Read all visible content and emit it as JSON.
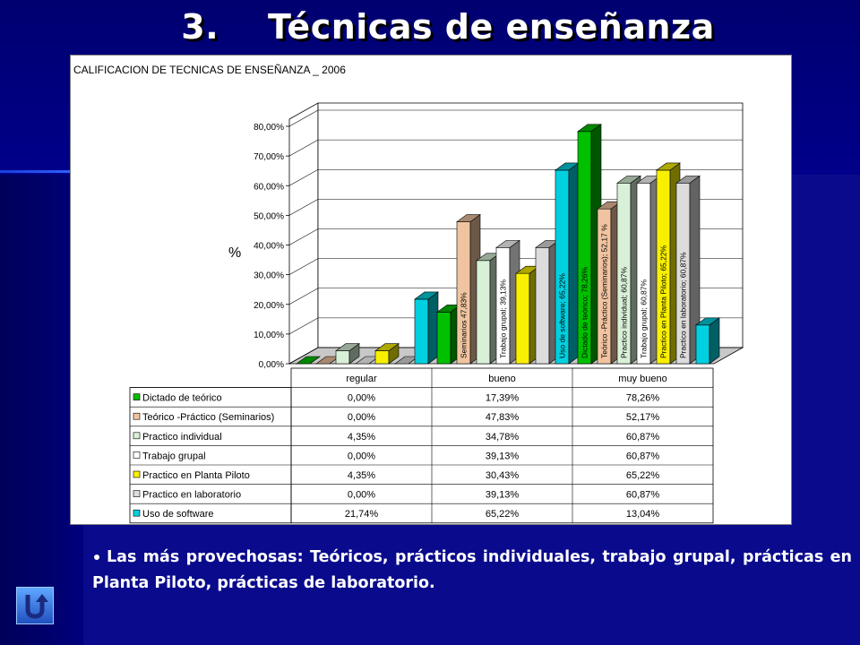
{
  "slide": {
    "title": "3.    Técnicas de enseñanza",
    "bullet_text": "Las más provechosas: Teóricos, prácticos individuales, trabajo grupal, prácticas en Planta Piloto, prácticas de laboratorio.",
    "return_icon": "return-arrow-icon"
  },
  "chart_data": {
    "type": "bar",
    "title": "CALIFICACION DE TECNICAS DE ENSEÑANZA _ 2006",
    "ylabel": "%",
    "ylim": [
      0,
      80
    ],
    "y_ticks": [
      "0,00%",
      "10,00%",
      "20,00%",
      "30,00%",
      "40,00%",
      "50,00%",
      "60,00%",
      "70,00%",
      "80,00%"
    ],
    "categories": [
      "regular",
      "bueno",
      "muy bueno"
    ],
    "series": [
      {
        "name": "Dictado de teórico",
        "values": [
          0.0,
          17.39,
          78.26
        ],
        "color": "#00c000",
        "display": [
          "0,00%",
          "17,39%",
          "78,26%"
        ]
      },
      {
        "name": "Teórico -Práctico (Seminarios)",
        "values": [
          0.0,
          47.83,
          52.17
        ],
        "color": "#f0c4a0",
        "display": [
          "0,00%",
          "47,83%",
          "52,17%"
        ]
      },
      {
        "name": "Practico individual",
        "values": [
          4.35,
          34.78,
          60.87
        ],
        "color": "#d8f0d8",
        "display": [
          "4,35%",
          "34,78%",
          "60,87%"
        ]
      },
      {
        "name": "Trabajo grupal",
        "values": [
          0.0,
          39.13,
          60.87
        ],
        "color": "#ffffff",
        "display": [
          "0,00%",
          "39,13%",
          "60,87%"
        ]
      },
      {
        "name": "Practico en Planta Piloto",
        "values": [
          4.35,
          30.43,
          65.22
        ],
        "color": "#f8f000",
        "display": [
          "4,35%",
          "30,43%",
          "65,22%"
        ]
      },
      {
        "name": "Practico en laboratorio",
        "values": [
          0.0,
          39.13,
          60.87
        ],
        "color": "#dcdcdc",
        "display": [
          "0,00%",
          "39,13%",
          "60,87%"
        ]
      },
      {
        "name": "Uso de software",
        "values": [
          21.74,
          65.22,
          13.04
        ],
        "color": "#00d0e0",
        "display": [
          "21,74%",
          "65,22%",
          "13,04%"
        ]
      }
    ],
    "data_labels": [
      {
        "series": 0,
        "category": 2,
        "text": "Dictado de teórico; 78,26%"
      },
      {
        "series": 1,
        "category": 1,
        "text": "Seminarios 47,83%"
      },
      {
        "series": 1,
        "category": 2,
        "text": "Teórico -Práctico (Seminarios); 52,17 %"
      },
      {
        "series": 2,
        "category": 2,
        "text": "Practico individual; 60,87%"
      },
      {
        "series": 3,
        "category": 1,
        "text": "Trabajo grupal; 39,13%"
      },
      {
        "series": 3,
        "category": 2,
        "text": "Trabajo grupal; 60,87%"
      },
      {
        "series": 4,
        "category": 2,
        "text": "Practico en Planta Piloto; 65,22%"
      },
      {
        "series": 5,
        "category": 2,
        "text": "Practico en laboratorio; 60,87%"
      },
      {
        "series": 6,
        "category": 1,
        "text": "Uso de software; 65,22%"
      }
    ],
    "legend": "table-bottom",
    "grid": true
  }
}
